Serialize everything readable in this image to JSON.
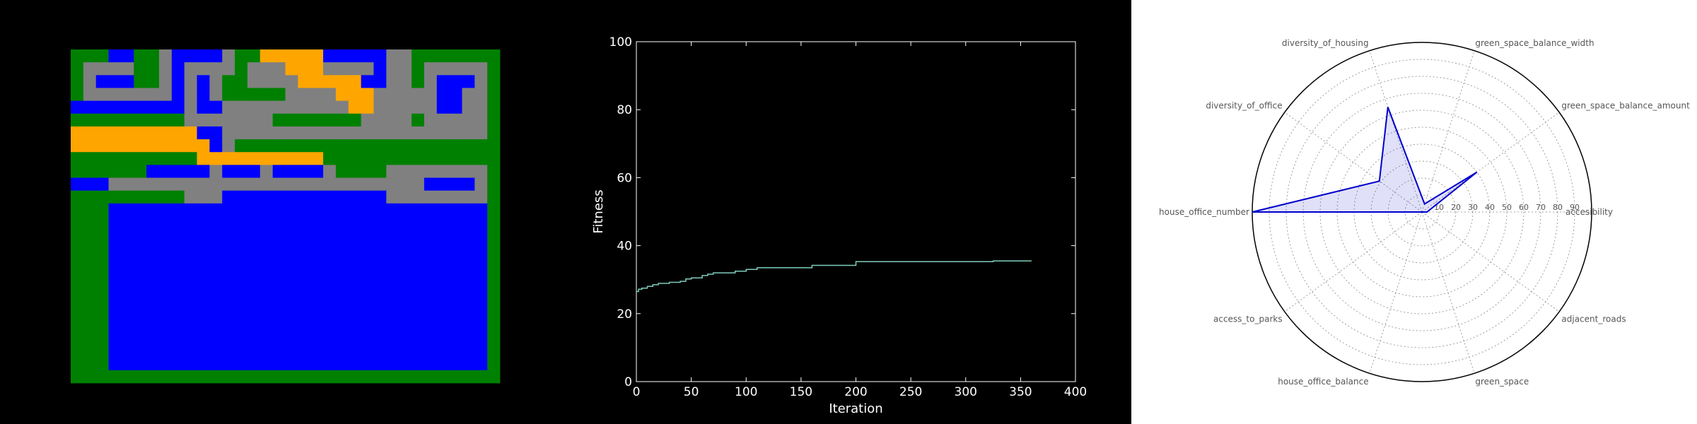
{
  "colors": {
    "road": "#808080",
    "housing": "#0000ff",
    "green": "#008000",
    "office": "#ffa500",
    "fitness_line": "#7fcdbb",
    "radar": "#0000cc"
  },
  "chart_data": [
    {
      "type": "heatmap",
      "title": "",
      "cell_legend": {
        "R": "road",
        "B": "housing",
        "G": "green",
        "O": "office"
      },
      "grid": [
        "GGGBBGGRBBBBRGGOOOOOBBBBBRRGGGGGGG",
        "GRRRRGGRBRRRRGRRROOORRRRBRRGRRRRRG",
        "GRBBBGGRBRBRGGRRRROOOOOBBRRGRBBBRG",
        "GRRRRRRRBRBRGGGGGRRRROOORRRRRBBRRG",
        "BBBBBBBBBRBBRRRRRRRRRROORRRRRBBRRG",
        "GGGGGGGGGRRRRRRRGGGGGGGRRRRGRRRRRG",
        "OOOOOOOOOOBBRRRRRRRRRRRRRRRRRRRRRG",
        "OOOOOOOOOOOBRGGGGGGGGGGGGGGGGGGGGG",
        "GGGGGGGGGGOOOOOOOOOOGGGGGGGGGGGGGG",
        "GGGGGGBBBBBRBBBRBBBBRGGGGRRRRRRRRG",
        "BBBRRRRRRRRRRRRRRRRRRRRRRRRRBBBBRG",
        "GGGGGGGGGRRRBBBBBBBBBBBBBRRRRRRRRG",
        "GGGBBBBBBBBBBBBBBBBBBBBBBBBBBBBBBG",
        "GGGBBBBBBBBBBBBBBBBBBBBBBBBBBBBBBG",
        "GGGBBBBBBBBBBBBBBBBBBBBBBBBBBBBBBG",
        "GGGBBBBBBBBBBBBBBBBBBBBBBBBBBBBBBG",
        "GGGBBBBBBBBBBBBBBBBBBBBBBBBBBBBBBG",
        "GGGBBBBBBBBBBBBBBBBBBBBBBBBBBBBBBG",
        "GGGBBBBBBBBBBBBBBBBBBBBBBBBBBBBBBG",
        "GGGBBBBBBBBBBBBBBBBBBBBBBBBBBBBBBG",
        "GGGBBBBBBBBBBBBBBBBBBBBBBBBBBBBBBG",
        "GGGBBBBBBBBBBBBBBBBBBBBBBBBBBBBBBG",
        "GGGBBBBBBBBBBBBBBBBBBBBBBBBBBBBBBG",
        "GGGBBBBBBBBBBBBBBBBBBBBBBBBBBBBBBG",
        "GGGBBBBBBBBBBBBBBBBBBBBBBBBBBBBBBG",
        "GGGGGGGGGGGGGGGGGGGGGGGGGGGGGGGGGG"
      ]
    },
    {
      "type": "line",
      "title": "",
      "xlabel": "Iteration",
      "ylabel": "Fitness",
      "xlim": [
        0,
        400
      ],
      "ylim": [
        0,
        100
      ],
      "xticks": [
        0,
        50,
        100,
        150,
        200,
        250,
        300,
        350,
        400
      ],
      "yticks": [
        0,
        20,
        40,
        60,
        80,
        100
      ],
      "grid": false,
      "x": [
        0,
        2,
        5,
        10,
        15,
        20,
        30,
        40,
        45,
        50,
        60,
        65,
        70,
        90,
        100,
        110,
        160,
        200,
        250,
        300,
        325,
        360
      ],
      "y": [
        26.5,
        27.2,
        27.5,
        28.0,
        28.5,
        28.9,
        29.2,
        29.5,
        30.2,
        30.5,
        31.2,
        31.6,
        32.0,
        32.5,
        33.0,
        33.5,
        34.2,
        35.3,
        35.3,
        35.3,
        35.5,
        35.5
      ]
    },
    {
      "type": "radar",
      "title": "",
      "rlim": [
        0,
        100
      ],
      "rticks": [
        10,
        20,
        30,
        40,
        50,
        60,
        70,
        80,
        90
      ],
      "grid": true,
      "axes": [
        "accesibility",
        "green_space_balance_amount",
        "green_space_balance_width",
        "diversity_of_housing",
        "diversity_of_office",
        "house_office_number",
        "access_to_parks",
        "house_office_balance",
        "green_space",
        "adjacent_roads"
      ],
      "values": [
        3,
        40,
        5,
        65,
        31,
        100,
        0,
        0,
        0,
        0
      ]
    }
  ]
}
